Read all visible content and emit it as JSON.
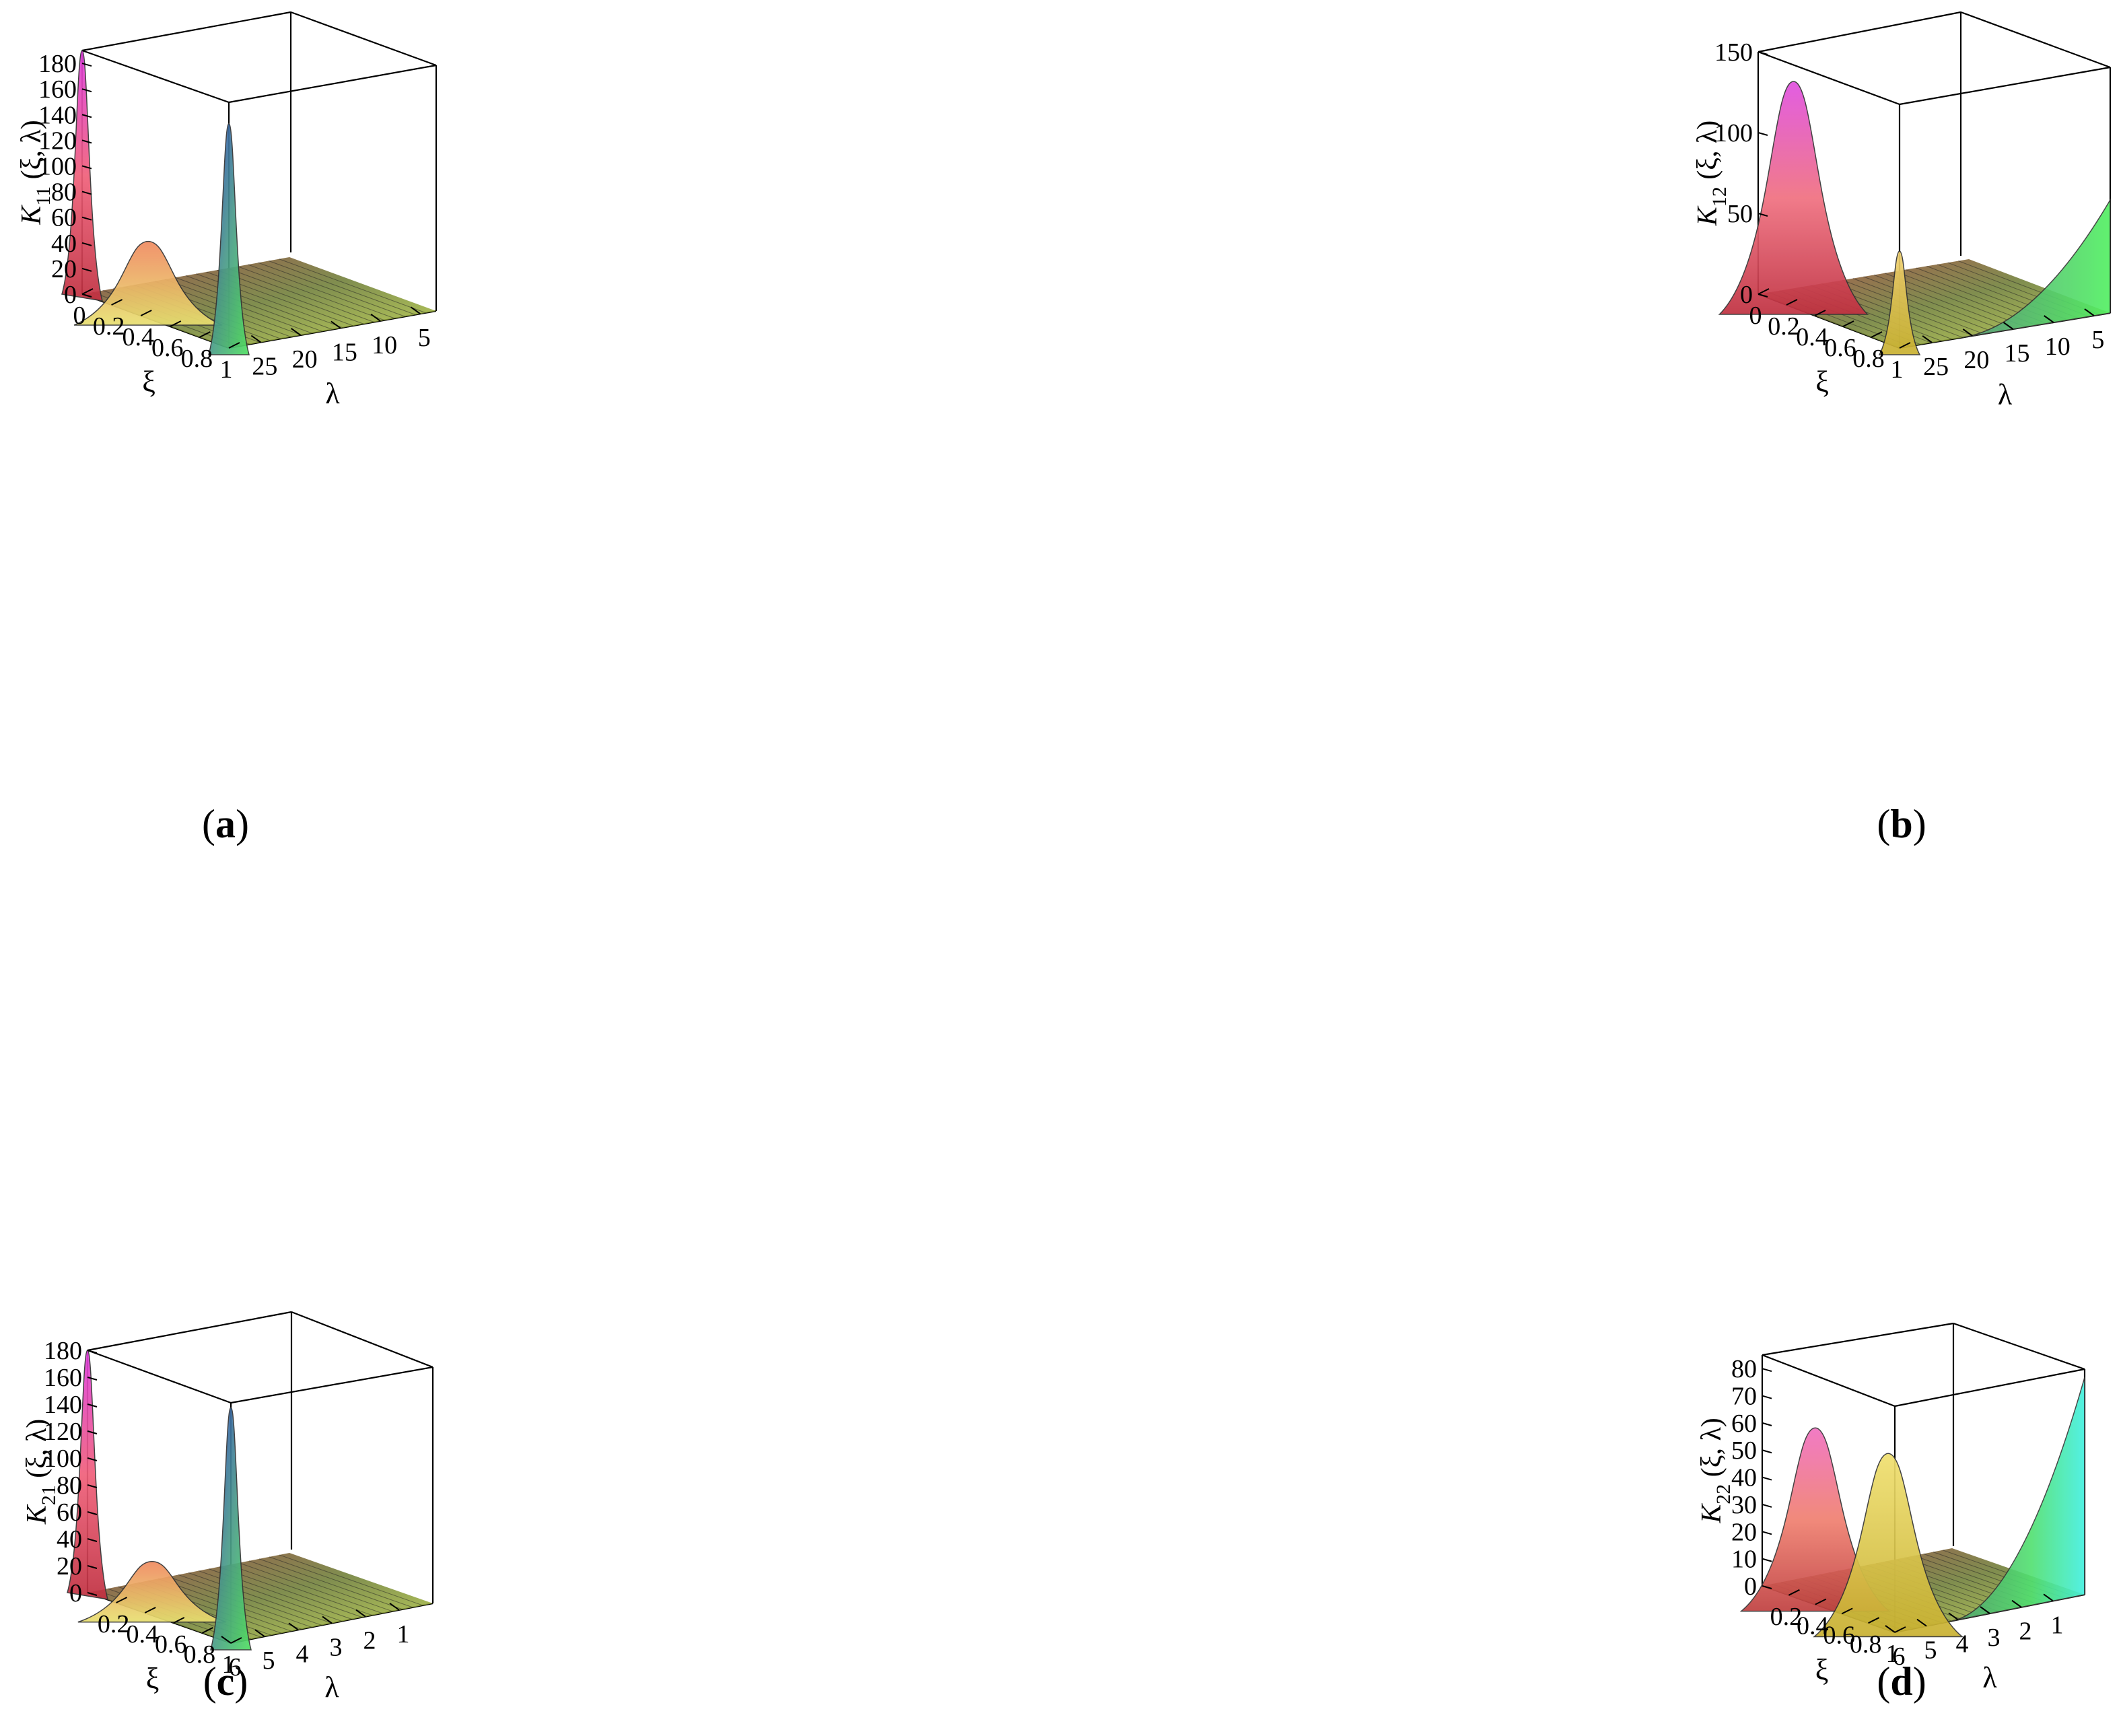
{
  "chart_data": [
    {
      "type": "surface3d",
      "panel": "a",
      "caption": {
        "open": "(",
        "letter": "a",
        "close": ")"
      },
      "z_label": {
        "main": "K",
        "sub": "11",
        "args": "(ξ, λ)"
      },
      "x_label": "ξ",
      "y_label": "λ",
      "z_ticks": [
        "0",
        "20",
        "40",
        "60",
        "80",
        "100",
        "120",
        "140",
        "160",
        "180"
      ],
      "z_range": [
        0,
        190
      ],
      "x_ticks": [
        "0",
        "0.2",
        "0.4",
        "0.6",
        "0.8",
        "1"
      ],
      "x_range": [
        0,
        1
      ],
      "y_ticks": [
        "25",
        "20",
        "15",
        "10",
        "5"
      ],
      "y_tick_values": [
        25,
        20,
        15,
        10,
        5
      ],
      "y_range": [
        29,
        3
      ],
      "features": [
        {
          "description": "spike at ξ=0",
          "x": 0,
          "y": 29,
          "z": 190
        },
        {
          "description": "hump",
          "x": 0.45,
          "y": 29,
          "z": 60
        },
        {
          "description": "spike at ξ=1",
          "x": 1,
          "y": 29,
          "z": 175
        }
      ]
    },
    {
      "type": "surface3d",
      "panel": "b",
      "caption": {
        "open": "(",
        "letter": "b",
        "close": ")"
      },
      "z_label": {
        "main": "K",
        "sub": "12",
        "args": "(ξ, λ)"
      },
      "x_label": "ξ",
      "y_label": "λ",
      "z_ticks": [
        "0",
        "50",
        "100",
        "150"
      ],
      "z_range": [
        0,
        150
      ],
      "x_ticks": [
        "0",
        "0.2",
        "0.4",
        "0.6",
        "0.8",
        "1"
      ],
      "x_range": [
        0,
        1
      ],
      "y_ticks": [
        "25",
        "20",
        "15",
        "10",
        "5"
      ],
      "y_tick_values": [
        25,
        20,
        15,
        10,
        5
      ],
      "y_range": [
        29,
        3
      ],
      "features": [
        {
          "description": "tall peak",
          "x": 0.25,
          "y": 29,
          "z": 140
        },
        {
          "description": "peak near ξ=1",
          "x": 1,
          "y": 29,
          "z": 60
        },
        {
          "description": "ridge at small λ",
          "x": 1,
          "y": 5,
          "z": 70
        }
      ]
    },
    {
      "type": "surface3d",
      "panel": "c",
      "caption": {
        "open": "(",
        "letter": "c",
        "close": ")"
      },
      "z_label": {
        "main": "K",
        "sub": "21",
        "args": "(ξ, λ)"
      },
      "x_label": "ξ",
      "y_label": "λ",
      "z_ticks": [
        "0",
        "20",
        "40",
        "60",
        "80",
        "100",
        "120",
        "140",
        "160",
        "180"
      ],
      "z_range": [
        0,
        180
      ],
      "x_ticks": [
        "0.2",
        "0.4",
        "0.6",
        "0.8",
        "1"
      ],
      "x_range": [
        0,
        1
      ],
      "y_ticks": [
        "6",
        "5",
        "4",
        "3",
        "2",
        "1"
      ],
      "y_tick_values": [
        6,
        5,
        4,
        3,
        2,
        1
      ],
      "y_range": [
        6,
        0
      ],
      "features": [
        {
          "description": "spike at ξ=0",
          "x": 0,
          "y": 6,
          "z": 180
        },
        {
          "description": "hump",
          "x": 0.45,
          "y": 6,
          "z": 40
        },
        {
          "description": "spike at ξ=1",
          "x": 1,
          "y": 6,
          "z": 175
        }
      ]
    },
    {
      "type": "surface3d",
      "panel": "d",
      "caption": {
        "open": "(",
        "letter": "d",
        "close": ")"
      },
      "z_label": {
        "main": "K",
        "sub": "22",
        "args": "(ξ, λ)"
      },
      "x_label": "ξ",
      "y_label": "λ",
      "z_ticks": [
        "0",
        "10",
        "20",
        "30",
        "40",
        "50",
        "60",
        "70",
        "80"
      ],
      "z_range": [
        0,
        85
      ],
      "x_ticks": [
        "0.2",
        "0.4",
        "0.6",
        "0.8",
        "1"
      ],
      "x_range": [
        0,
        1
      ],
      "y_ticks": [
        "6",
        "5",
        "4",
        "3",
        "2",
        "1"
      ],
      "y_tick_values": [
        6,
        5,
        4,
        3,
        2,
        1
      ],
      "y_range": [
        6,
        0
      ],
      "features": [
        {
          "description": "peak",
          "x": 0.4,
          "y": 6,
          "z": 65
        },
        {
          "description": "narrow peak near ξ=1",
          "x": 0.95,
          "y": 6,
          "z": 65
        },
        {
          "description": "ridge at small λ",
          "x": 1,
          "y": 0,
          "z": 80
        }
      ]
    }
  ]
}
